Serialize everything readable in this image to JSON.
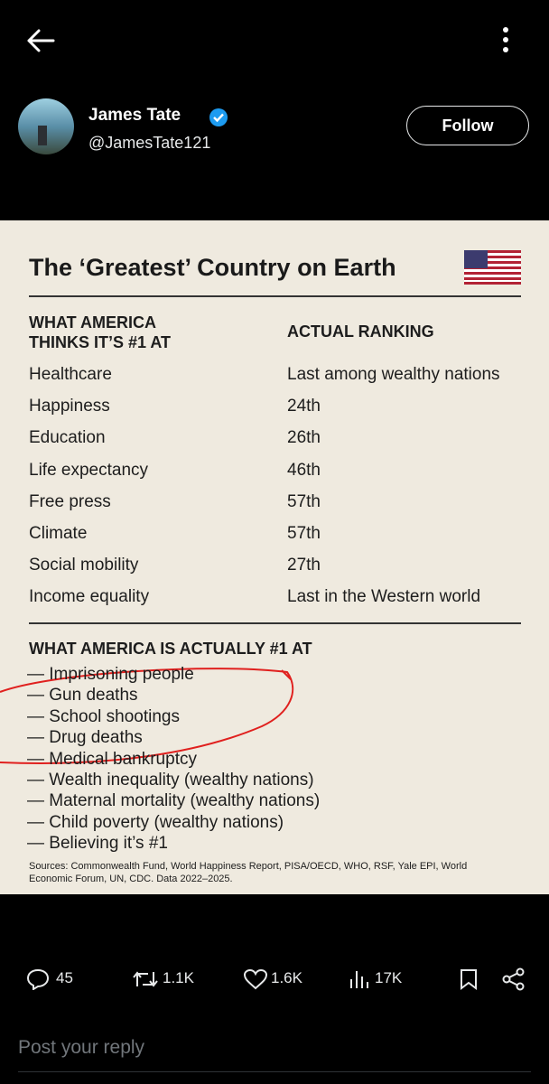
{
  "author": {
    "name": "James Tate",
    "handle": "@JamesTate121",
    "follow": "Follow"
  },
  "image": {
    "title": "The ‘Greatest’ Country on Earth",
    "left_header": "WHAT AMERICA THINKS IT’S #1 AT",
    "right_header": "ACTUAL RANKING",
    "rows": [
      [
        "Healthcare",
        "Last among wealthy nations"
      ],
      [
        "Happiness",
        "24th"
      ],
      [
        "Education",
        "26th"
      ],
      [
        "Life expectancy",
        "46th"
      ],
      [
        "Free press",
        "57th"
      ],
      [
        "Climate",
        "57th"
      ],
      [
        "Social mobility",
        "27th"
      ],
      [
        "Income equality",
        "Last in the Western world"
      ]
    ],
    "section_heading": "WHAT AMERICA IS ACTUALLY #1 AT",
    "items": [
      "— Imprisoning people",
      "— Gun deaths",
      "— School shootings",
      "— Drug deaths",
      "— Medical bankruptcy",
      "— Wealth inequality (wealthy nations)",
      "— Maternal mortality (wealthy nations)",
      "— Child poverty (wealthy nations)",
      "— Believing it’s #1"
    ],
    "sources": "Sources: Commonwealth Fund, World Happiness Report, PISA/OECD, WHO, RSF, Yale EPI, World Economic Forum, UN, CDC. Data 2022–2025."
  },
  "actions": {
    "replies": "45",
    "reposts": "1.1K",
    "likes": "1.6K",
    "views": "17K"
  },
  "reply_placeholder": "Post your reply"
}
